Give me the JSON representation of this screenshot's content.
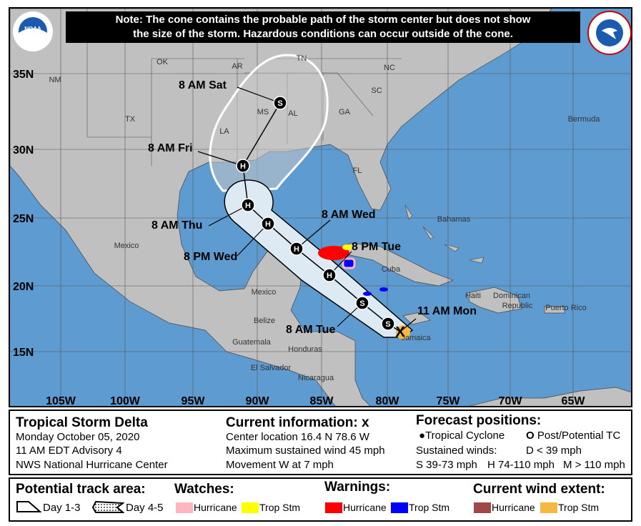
{
  "note": {
    "line1": "Note: The cone contains the probable path of the storm center but does not show",
    "line2": "the size of the storm. Hazardous conditions can occur outside of the cone."
  },
  "logos": {
    "left": "NOAA",
    "right": "NATIONAL WEATHER SERVICE"
  },
  "map": {
    "colors": {
      "ocean": "#5e9bd0",
      "land": "#c0c0c0",
      "cone_fill": "#dde9f3",
      "hurricane_warning": "#ff0000",
      "trop_stm_warning": "#0000ff",
      "hurricane_watch": "#ffb6c1",
      "trop_stm_watch": "#ffff00",
      "hurricane_wind": "#a04848",
      "trop_stm_wind": "#f5b842"
    },
    "lon_ticks": [
      "105W",
      "100W",
      "95W",
      "90W",
      "85W",
      "80W",
      "75W",
      "70W",
      "65W"
    ],
    "lat_ticks": [
      "35N",
      "30N",
      "25N",
      "20N",
      "15N"
    ],
    "place_labels": [
      "NM",
      "OK",
      "AR",
      "TN",
      "NC",
      "TX",
      "SC",
      "MS",
      "AL",
      "GA",
      "LA",
      "FL",
      "Bermuda",
      "Bahamas",
      "Mexico",
      "Cuba",
      "Mexico",
      "Haiti",
      "Dominican",
      "Republic",
      "Puerto Rico",
      "Jamaica",
      "Belize",
      "Guatemala",
      "Honduras",
      "El Salvador",
      "Nicaragua"
    ],
    "forecast_points": [
      {
        "time": "11 AM Mon",
        "symbol": "X"
      },
      {
        "time": "",
        "symbol": "S"
      },
      {
        "time": "8 AM Tue",
        "symbol": "S"
      },
      {
        "time": "8 PM Tue",
        "symbol": "H"
      },
      {
        "time": "8 AM Wed",
        "symbol": "H"
      },
      {
        "time": "8 PM Wed",
        "symbol": "H"
      },
      {
        "time": "8 AM Thu",
        "symbol": "H"
      },
      {
        "time": "8 AM Fri",
        "symbol": "H"
      },
      {
        "time": "8 AM Sat",
        "symbol": "S"
      }
    ]
  },
  "info": {
    "storm_name": "Tropical Storm Delta",
    "date": "Monday October 05, 2020",
    "advisory": "11 AM EDT Advisory 4",
    "center": "NWS National Hurricane Center",
    "current_title": "Current information: x",
    "location": "Center location 16.4 N 78.6 W",
    "wind": "Maximum sustained wind 45 mph",
    "movement": "Movement W at 7 mph",
    "forecast_title": "Forecast positions:",
    "tc": "Tropical Cyclone",
    "post_tc": "Post/Potential TC",
    "sustained": "Sustained winds:",
    "d": "D < 39 mph",
    "s": "S 39-73 mph",
    "h": "H 74-110 mph",
    "m": "M > 110 mph"
  },
  "legend": {
    "track_title": "Potential track area:",
    "day13": "Day 1-3",
    "day45": "Day 4-5",
    "watches_title": "Watches:",
    "warnings_title": "Warnings:",
    "wind_title": "Current wind extent:",
    "hurricane": "Hurricane",
    "trop_stm": "Trop Stm"
  }
}
